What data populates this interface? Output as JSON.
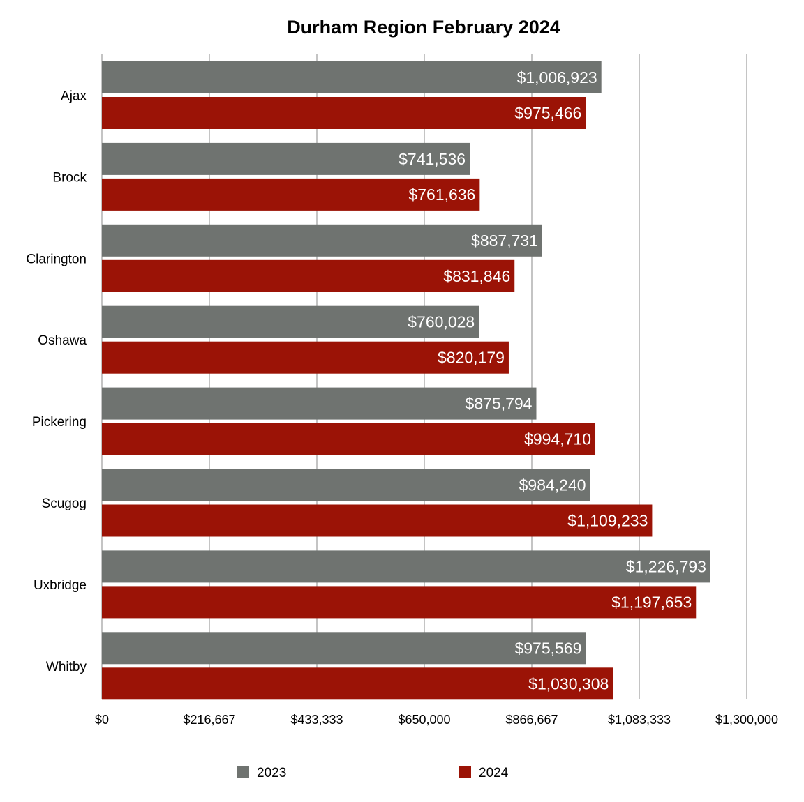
{
  "chart_data": {
    "type": "bar",
    "orientation": "horizontal",
    "title": "Durham Region February 2024",
    "xlabel": "",
    "ylabel": "",
    "categories": [
      "Ajax",
      "Brock",
      "Clarington",
      "Oshawa",
      "Pickering",
      "Scugog",
      "Uxbridge",
      "Whitby"
    ],
    "series": [
      {
        "name": "2023",
        "color": "#6f7370",
        "values": [
          1006923,
          741536,
          887731,
          760028,
          875794,
          984240,
          1226793,
          975569
        ],
        "labels": [
          "$1,006,923",
          "$741,536",
          "$887,731",
          "$760,028",
          "$875,794",
          "$984,240",
          "$1,226,793",
          "$975,569"
        ]
      },
      {
        "name": "2024",
        "color": "#9b1306",
        "values": [
          975466,
          761636,
          831846,
          820179,
          994710,
          1109233,
          1197653,
          1030308
        ],
        "labels": [
          "$975,466",
          "$761,636",
          "$831,846",
          "$820,179",
          "$994,710",
          "$1,109,233",
          "$1,197,653",
          "$1,030,308"
        ]
      }
    ],
    "xlim": [
      0,
      1300000
    ],
    "x_ticks": [
      0,
      216667,
      433333,
      650000,
      866667,
      1083333,
      1300000
    ],
    "x_tick_labels": [
      "$0",
      "$216,667",
      "$433,333",
      "$650,000",
      "$866,667",
      "$1,083,333",
      "$1,300,000"
    ],
    "grid": true,
    "legend": "bottom",
    "gridline_color": "#c4c4c4"
  }
}
